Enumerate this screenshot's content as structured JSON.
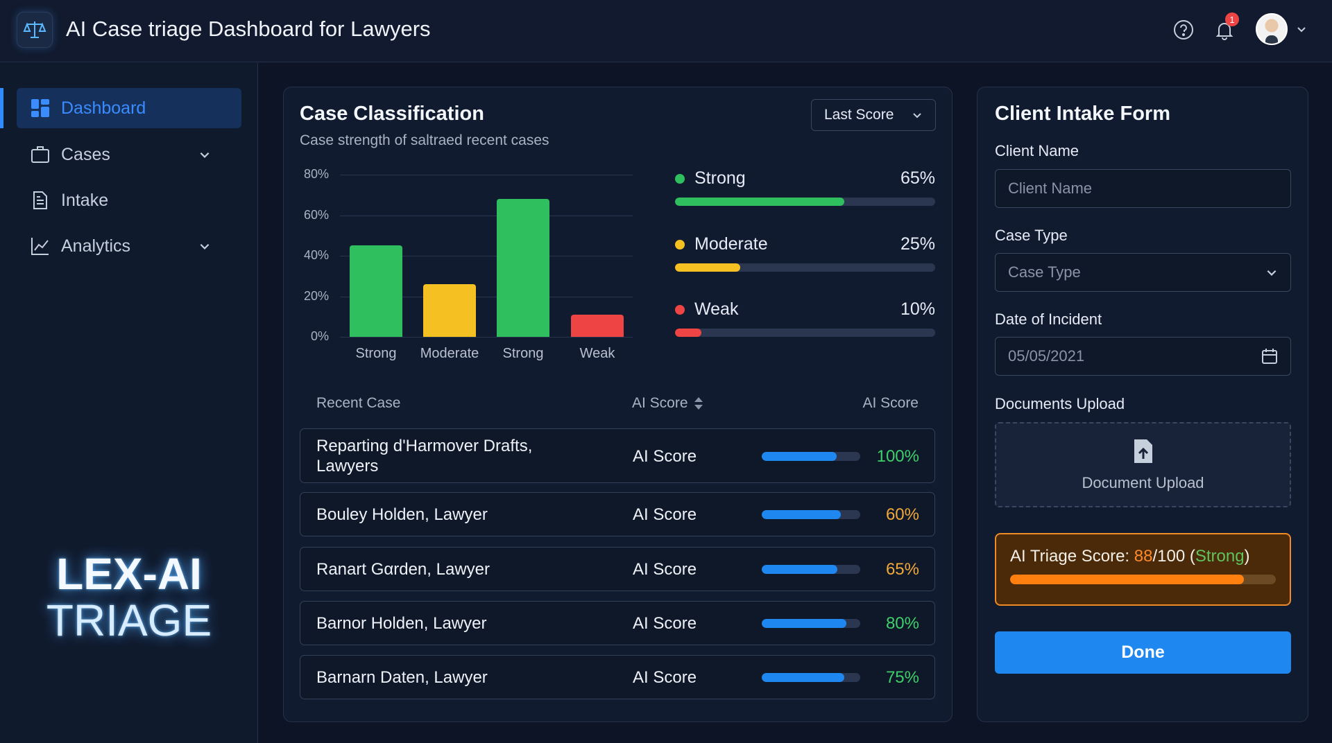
{
  "header": {
    "title": "AI Case triage Dashboard for Lawyers",
    "notification_count": "1",
    "icons": [
      "scales-icon",
      "help-icon",
      "bell-icon",
      "avatar",
      "chevron-down-icon"
    ]
  },
  "sidebar": {
    "items": [
      {
        "label": "Dashboard",
        "icon": "dashboard-icon",
        "active": true
      },
      {
        "label": "Cases",
        "icon": "briefcase-icon",
        "expandable": true
      },
      {
        "label": "Intake",
        "icon": "document-icon"
      },
      {
        "label": "Analytics",
        "icon": "chart-icon",
        "expandable": true
      }
    ],
    "brand_line1": "LEX-AI",
    "brand_line2": "TRIAGE"
  },
  "classification": {
    "title": "Case Classification",
    "subtitle": "Case strength of saltraed recent cases",
    "dropdown": "Last Score",
    "legend": [
      {
        "label": "Strong",
        "pct": "65%",
        "value": 65,
        "color": "#2fbf5f"
      },
      {
        "label": "Moderate",
        "pct": "25%",
        "value": 25,
        "color": "#f5c022"
      },
      {
        "label": "Weak",
        "pct": "10%",
        "value": 10,
        "color": "#ef4444"
      }
    ]
  },
  "chart_data": {
    "type": "bar",
    "categories": [
      "Strong",
      "Moderate",
      "Strong",
      "Weak"
    ],
    "values": [
      45,
      26,
      68,
      11
    ],
    "colors": [
      "#2fbf5f",
      "#f5c022",
      "#2fbf5f",
      "#ef4444"
    ],
    "yticks": [
      "0%",
      "20%",
      "40%",
      "60%",
      "80%"
    ],
    "ylim": [
      0,
      80
    ],
    "grid": true
  },
  "table": {
    "headers": [
      "Recent Case",
      "AI Score",
      "AI Score"
    ],
    "rows": [
      {
        "name": "Reparting d'Harmover Drafts, Lawyers",
        "label": "AI Score",
        "pct": "100%",
        "fill": 0.76,
        "color": "#3fcf6a"
      },
      {
        "name": "Bouley Holden, Lawyer",
        "label": "AI Score",
        "pct": "60%",
        "fill": 0.8,
        "color": "#f0a93a"
      },
      {
        "name": "Ranart Gαrden, Lawyer",
        "label": "AI Score",
        "pct": "65%",
        "fill": 0.77,
        "color": "#f0a93a"
      },
      {
        "name": "Barnor Holden, Lawyer",
        "label": "AI Score",
        "pct": "80%",
        "fill": 0.86,
        "color": "#3fcf6a"
      },
      {
        "name": "Barnarn Daten, Lawyer",
        "label": "AI Score",
        "pct": "75%",
        "fill": 0.84,
        "color": "#3fcf6a"
      }
    ]
  },
  "intake": {
    "title": "Client Intake Form",
    "client_name_label": "Client Name",
    "client_name_placeholder": "Client Name",
    "case_type_label": "Case Type",
    "case_type_value": "Case Type",
    "date_label": "Date of Incident",
    "date_value": "05/05/2021",
    "docs_label": "Documents Upload",
    "docs_button": "Document Upload",
    "triage_prefix": "AI Triage Score: ",
    "triage_score": "88",
    "triage_total": "/100 (",
    "triage_strength": "Strong",
    "triage_close": ")",
    "triage_fill": 0.88,
    "done": "Done"
  }
}
